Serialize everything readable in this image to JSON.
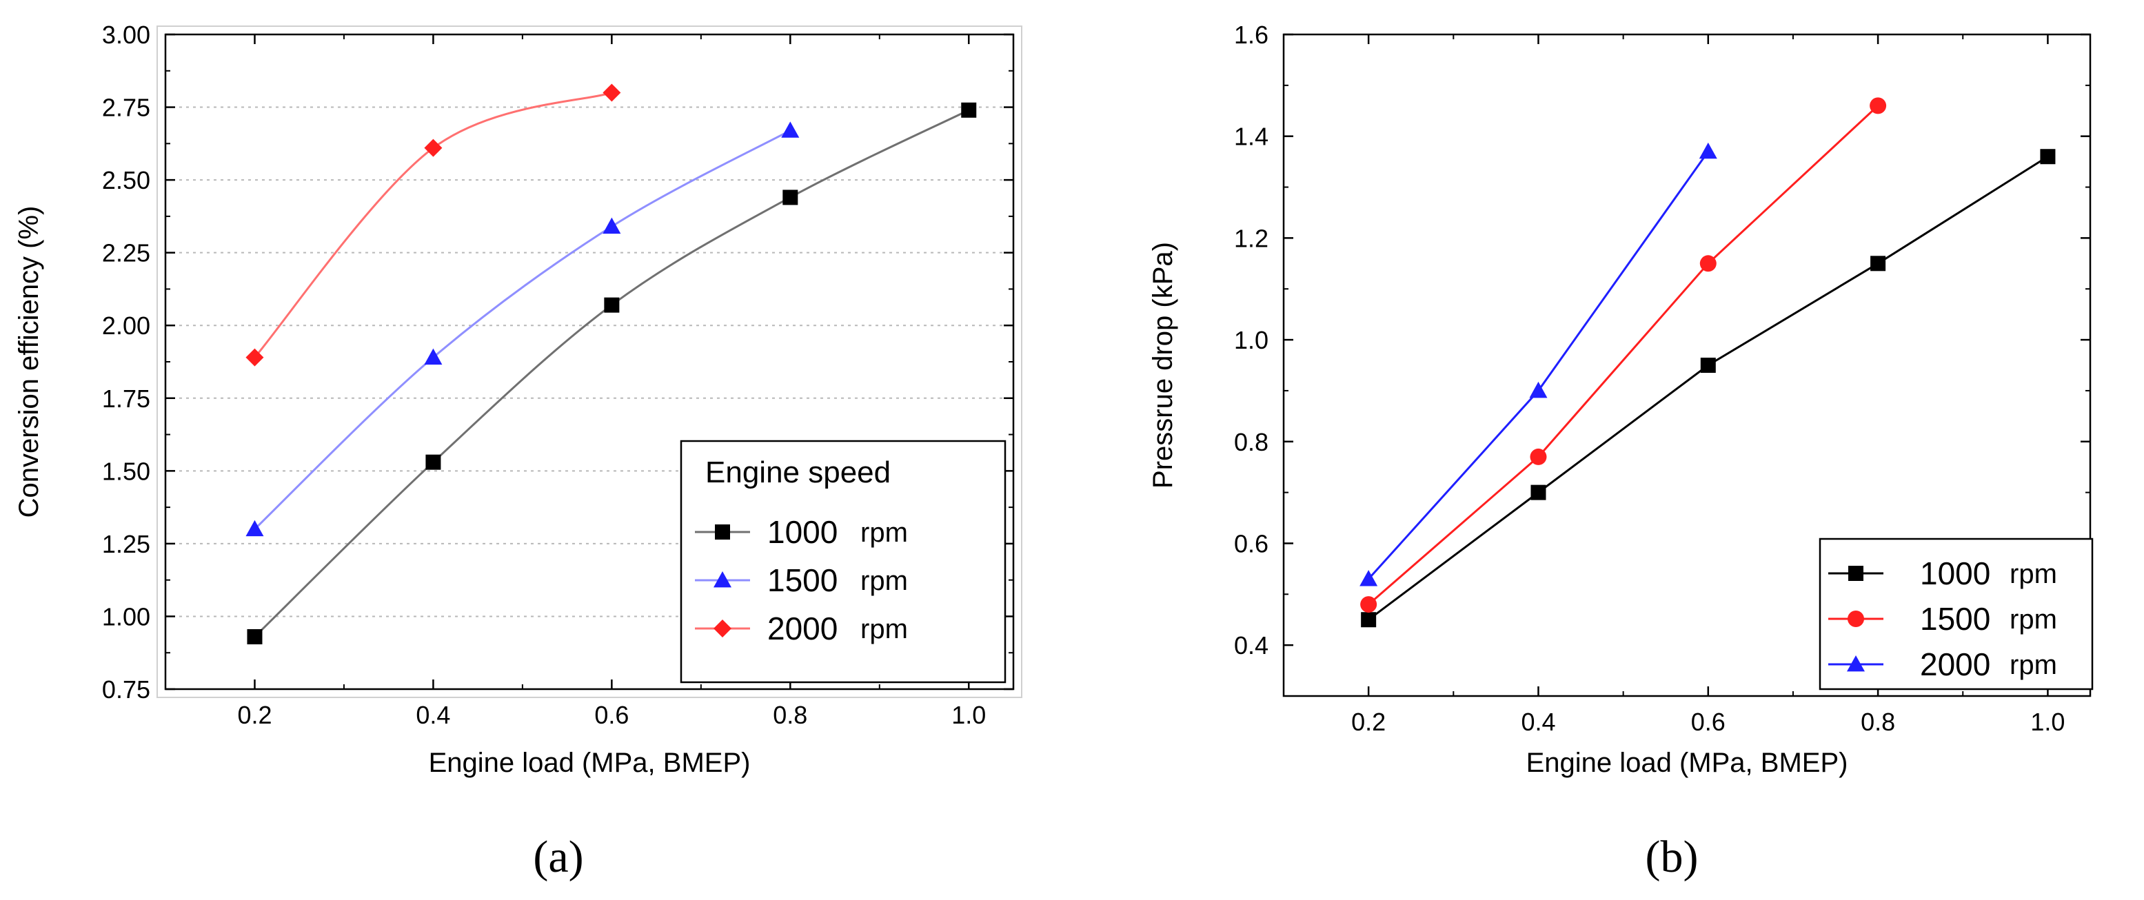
{
  "colors": {
    "black": "#000000",
    "blue": "#1f1fff",
    "red": "#ff1f1f",
    "grid": "#b8b8b8",
    "plot_bg_a": "#ffffff",
    "a_line_1000": "#707070",
    "a_line_1500": "#8f8fff",
    "a_line_2000": "#ff7070"
  },
  "chart_data": [
    {
      "panel": "(a)",
      "type": "line",
      "title": "",
      "xlabel": "Engine load (MPa, BMEP)",
      "ylabel": "Conversion efficiency (%)",
      "xlim": [
        0.1,
        1.05
      ],
      "ylim": [
        0.75,
        3.0
      ],
      "xticks": [
        0.2,
        0.4,
        0.6,
        0.8,
        1.0
      ],
      "xtick_labels": [
        "0.2",
        "0.4",
        "0.6",
        "0.8",
        "1.0"
      ],
      "yticks": [
        0.75,
        1.0,
        1.25,
        1.5,
        1.75,
        2.0,
        2.25,
        2.5,
        2.75,
        3.0
      ],
      "ytick_labels": [
        "0.75",
        "1.00",
        "1.25",
        "1.50",
        "1.75",
        "2.00",
        "2.25",
        "2.50",
        "2.75",
        "3.00"
      ],
      "grid": true,
      "legend": {
        "title": "Engine speed",
        "placement": "bottom-right"
      },
      "series": [
        {
          "name": "1000",
          "unit": "rpm",
          "marker": "square",
          "color": "#000000",
          "line_color": "#707070",
          "x": [
            0.2,
            0.4,
            0.6,
            0.8,
            1.0
          ],
          "y": [
            0.93,
            1.53,
            2.07,
            2.44,
            2.74
          ]
        },
        {
          "name": "1500",
          "unit": "rpm",
          "marker": "triangle",
          "color": "#1f1fff",
          "line_color": "#8f8fff",
          "x": [
            0.2,
            0.4,
            0.6,
            0.8
          ],
          "y": [
            1.3,
            1.89,
            2.34,
            2.67
          ]
        },
        {
          "name": "2000",
          "unit": "rpm",
          "marker": "diamond",
          "color": "#ff1f1f",
          "line_color": "#ff7070",
          "x": [
            0.2,
            0.4,
            0.6
          ],
          "y": [
            1.89,
            2.61,
            2.8
          ]
        }
      ]
    },
    {
      "panel": "(b)",
      "type": "line",
      "title": "",
      "xlabel": "Engine load (MPa, BMEP)",
      "ylabel": "Pressrue drop (kPa)",
      "xlim": [
        0.1,
        1.05
      ],
      "ylim": [
        0.3,
        1.6
      ],
      "xticks": [
        0.2,
        0.4,
        0.6,
        0.8,
        1.0
      ],
      "xtick_labels": [
        "0.2",
        "0.4",
        "0.6",
        "0.8",
        "1.0"
      ],
      "yticks": [
        0.4,
        0.6,
        0.8,
        1.0,
        1.2,
        1.4,
        1.6
      ],
      "ytick_labels": [
        "0.4",
        "0.6",
        "0.8",
        "1.0",
        "1.2",
        "1.4",
        "1.6"
      ],
      "grid": false,
      "legend": {
        "title": "",
        "placement": "bottom-right"
      },
      "series": [
        {
          "name": "1000",
          "unit": "rpm",
          "marker": "square",
          "color": "#000000",
          "line_color": "#000000",
          "x": [
            0.2,
            0.4,
            0.6,
            0.8,
            1.0
          ],
          "y": [
            0.45,
            0.7,
            0.95,
            1.15,
            1.36
          ]
        },
        {
          "name": "1500",
          "unit": "rpm",
          "marker": "circle",
          "color": "#ff1f1f",
          "line_color": "#ff1f1f",
          "x": [
            0.2,
            0.4,
            0.6,
            0.8
          ],
          "y": [
            0.48,
            0.77,
            1.15,
            1.46
          ]
        },
        {
          "name": "2000",
          "unit": "rpm",
          "marker": "triangle",
          "color": "#1f1fff",
          "line_color": "#1f1fff",
          "x": [
            0.2,
            0.4,
            0.6
          ],
          "y": [
            0.53,
            0.9,
            1.37
          ]
        }
      ]
    }
  ]
}
